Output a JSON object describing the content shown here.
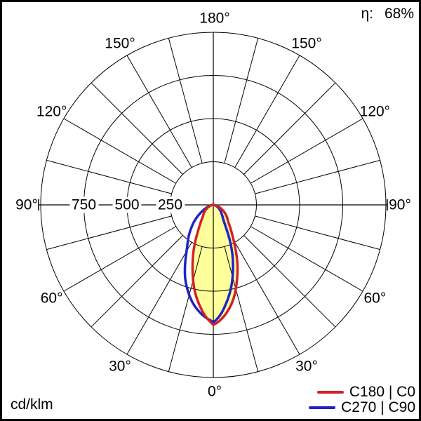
{
  "header": {
    "eta_label": "η:",
    "eta_value": "68%"
  },
  "footer": {
    "unit": "cd/klm"
  },
  "legend": {
    "items": [
      {
        "label": "C180 | C0",
        "color": "#d22128"
      },
      {
        "label": "C270 | C90",
        "color": "#2123c4"
      }
    ]
  },
  "chart_data": {
    "type": "polar",
    "subtype": "luminous-intensity-distribution",
    "unit": "cd/klm",
    "efficiency_percent": 68,
    "grid": true,
    "angle_step_deg": 15,
    "angle_labels_deg": [
      0,
      30,
      60,
      90,
      120,
      150,
      180
    ],
    "angle_label_suffix": "°",
    "radial_ticks": [
      250,
      500,
      750
    ],
    "radial_max": 1000,
    "gamma_deg": [
      0,
      10,
      20,
      30,
      40,
      50,
      60,
      70,
      80,
      90
    ],
    "series": [
      {
        "name": "C180 | C0",
        "color": "#d22128",
        "fill": "#ffff9b",
        "left_plane": "C180",
        "left_values": [
          690,
          550,
          350,
          180,
          100,
          70,
          45,
          25,
          10,
          0
        ],
        "right_plane": "C0",
        "right_values": [
          695,
          590,
          410,
          235,
          140,
          100,
          65,
          35,
          14,
          0
        ]
      },
      {
        "name": "C270 | C90",
        "color": "#2123c4",
        "fill": null,
        "left_plane": "C270",
        "left_values": [
          675,
          600,
          470,
          310,
          215,
          140,
          75,
          35,
          14,
          0
        ],
        "right_plane": "C90",
        "right_values": [
          680,
          530,
          330,
          140,
          80,
          55,
          35,
          18,
          7,
          0
        ]
      }
    ]
  }
}
